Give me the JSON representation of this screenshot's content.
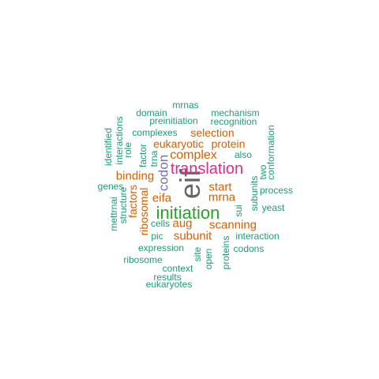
{
  "colors": {
    "green": "#2ca02c",
    "teal": "#1b9e77",
    "orange": "#d95f02",
    "purple": "#7570b3",
    "magenta": "#e7298a",
    "gray": "#666666"
  },
  "words": [
    {
      "text": "eif",
      "color": "gray"
    },
    {
      "text": "initiation",
      "color": "green"
    },
    {
      "text": "translation",
      "color": "magenta"
    },
    {
      "text": "codon",
      "color": "purple"
    },
    {
      "text": "complex",
      "color": "orange"
    },
    {
      "text": "start",
      "color": "orange"
    },
    {
      "text": "mrna",
      "color": "orange"
    },
    {
      "text": "aug",
      "color": "orange"
    },
    {
      "text": "eifa",
      "color": "orange"
    },
    {
      "text": "binding",
      "color": "orange"
    },
    {
      "text": "subunit",
      "color": "orange"
    },
    {
      "text": "scanning",
      "color": "orange"
    },
    {
      "text": "selection",
      "color": "orange"
    },
    {
      "text": "protein",
      "color": "orange"
    },
    {
      "text": "eukaryotic",
      "color": "orange"
    },
    {
      "text": "ribosomal",
      "color": "orange"
    },
    {
      "text": "factors",
      "color": "orange"
    },
    {
      "text": "mrnas",
      "color": "teal"
    },
    {
      "text": "domain",
      "color": "teal"
    },
    {
      "text": "mechanism",
      "color": "teal"
    },
    {
      "text": "preinitiation",
      "color": "teal"
    },
    {
      "text": "recognition",
      "color": "teal"
    },
    {
      "text": "complexes",
      "color": "teal"
    },
    {
      "text": "identified",
      "color": "teal"
    },
    {
      "text": "interactions",
      "color": "teal"
    },
    {
      "text": "role",
      "color": "teal"
    },
    {
      "text": "factor",
      "color": "teal"
    },
    {
      "text": "trna",
      "color": "teal"
    },
    {
      "text": "conformation",
      "color": "teal"
    },
    {
      "text": "two",
      "color": "teal"
    },
    {
      "text": "also",
      "color": "teal"
    },
    {
      "text": "genes",
      "color": "teal"
    },
    {
      "text": "subunits",
      "color": "teal"
    },
    {
      "text": "process",
      "color": "teal"
    },
    {
      "text": "structure",
      "color": "teal"
    },
    {
      "text": "mettrnai",
      "color": "teal"
    },
    {
      "text": "sui",
      "color": "teal"
    },
    {
      "text": "yeast",
      "color": "teal"
    },
    {
      "text": "cells",
      "color": "teal"
    },
    {
      "text": "pic",
      "color": "teal"
    },
    {
      "text": "interaction",
      "color": "teal"
    },
    {
      "text": "expression",
      "color": "teal"
    },
    {
      "text": "site",
      "color": "teal"
    },
    {
      "text": "proteins",
      "color": "teal"
    },
    {
      "text": "codons",
      "color": "teal"
    },
    {
      "text": "ribosome",
      "color": "teal"
    },
    {
      "text": "open",
      "color": "teal"
    },
    {
      "text": "context",
      "color": "teal"
    },
    {
      "text": "results",
      "color": "teal"
    },
    {
      "text": "eukaryotes",
      "color": "teal"
    }
  ]
}
